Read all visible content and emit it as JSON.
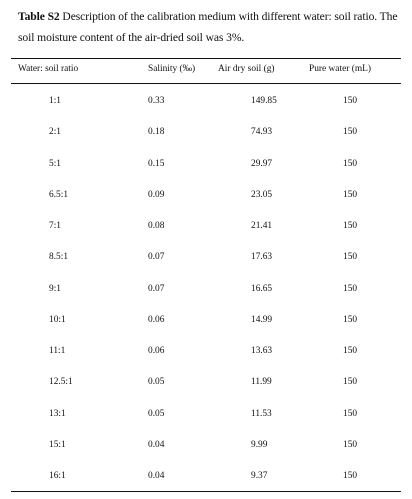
{
  "caption": {
    "label": "Table S2",
    "text": " Description of the calibration medium with different water: soil ratio. The soil moisture content of the air-dried soil was 3%."
  },
  "table": {
    "headers": [
      "Water: soil ratio",
      "Salinity (‰)",
      "Air dry soil (g)",
      "Pure water (mL)"
    ],
    "rows": [
      [
        "1:1",
        "0.33",
        "149.85",
        "150"
      ],
      [
        "2:1",
        "0.18",
        "74.93",
        "150"
      ],
      [
        "5:1",
        "0.15",
        "29.97",
        "150"
      ],
      [
        "6.5:1",
        "0.09",
        "23.05",
        "150"
      ],
      [
        "7:1",
        "0.08",
        "21.41",
        "150"
      ],
      [
        "8.5:1",
        "0.07",
        "17.63",
        "150"
      ],
      [
        "9:1",
        "0.07",
        "16.65",
        "150"
      ],
      [
        "10:1",
        "0.06",
        "14.99",
        "150"
      ],
      [
        "11:1",
        "0.06",
        "13.63",
        "150"
      ],
      [
        "12.5:1",
        "0.05",
        "11.99",
        "150"
      ],
      [
        "13:1",
        "0.05",
        "11.53",
        "150"
      ],
      [
        "15:1",
        "0.04",
        "9.99",
        "150"
      ],
      [
        "16:1",
        "0.04",
        "9.37",
        "150"
      ]
    ]
  }
}
